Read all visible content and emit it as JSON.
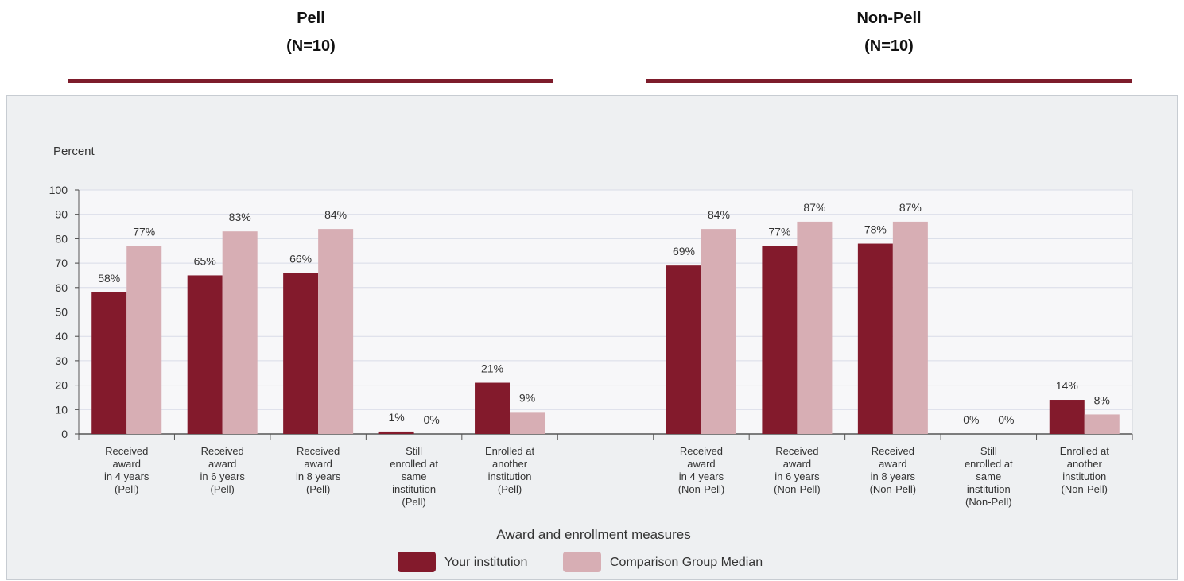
{
  "header": {
    "groups": [
      {
        "name": "Pell",
        "n": "(N=10)"
      },
      {
        "name": "Non-Pell",
        "n": "(N=10)"
      }
    ]
  },
  "chart_data": {
    "type": "bar",
    "ylabel": "Percent",
    "xlabel": "Award and enrollment measures",
    "ylim": [
      0,
      100
    ],
    "yticks": [
      0,
      10,
      20,
      30,
      40,
      50,
      60,
      70,
      80,
      90,
      100
    ],
    "grid": true,
    "legend_placement": "bottom-center",
    "categories": [
      [
        "Received",
        "award",
        "in 4 years",
        "(Pell)"
      ],
      [
        "Received",
        "award",
        "in 6 years",
        "(Pell)"
      ],
      [
        "Received",
        "award",
        "in 8 years",
        "(Pell)"
      ],
      [
        "Still",
        "enrolled at",
        "same",
        "institution",
        "(Pell)"
      ],
      [
        "Enrolled at",
        "another",
        "institution",
        "(Pell)"
      ],
      [],
      [
        "Received",
        "award",
        "in 4 years",
        "(Non-Pell)"
      ],
      [
        "Received",
        "award",
        "in 6 years",
        "(Non-Pell)"
      ],
      [
        "Received",
        "award",
        "in 8 years",
        "(Non-Pell)"
      ],
      [
        "Still",
        "enrolled at",
        "same",
        "institution",
        "(Non-Pell)"
      ],
      [
        "Enrolled at",
        "another",
        "institution",
        "(Non-Pell)"
      ]
    ],
    "series": [
      {
        "name": "Your institution",
        "color": "#831a2c",
        "values": [
          58,
          65,
          66,
          1,
          21,
          null,
          69,
          77,
          78,
          0,
          14
        ],
        "labels": [
          "58%",
          "65%",
          "66%",
          "1%",
          "21%",
          "",
          "69%",
          "77%",
          "78%",
          "0%",
          "14%"
        ]
      },
      {
        "name": "Comparison Group Median",
        "color": "#d7aeb4",
        "values": [
          77,
          83,
          84,
          0,
          9,
          null,
          84,
          87,
          87,
          0,
          8
        ],
        "labels": [
          "77%",
          "83%",
          "84%",
          "0%",
          "9%",
          "",
          "84%",
          "87%",
          "87%",
          "0%",
          "8%"
        ]
      }
    ]
  }
}
